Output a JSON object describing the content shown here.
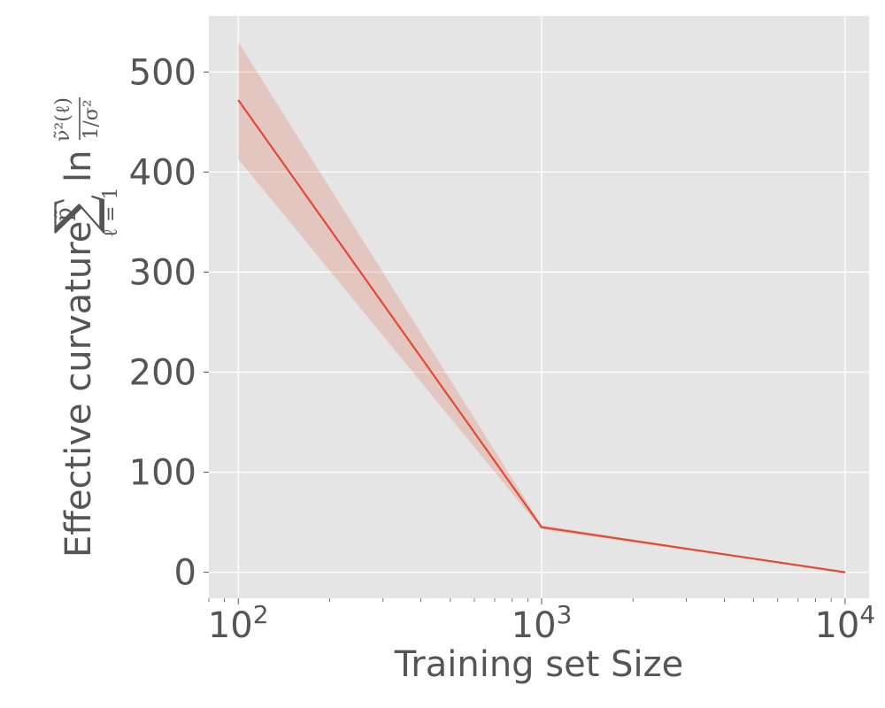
{
  "chart_data": {
    "type": "line",
    "xscale": "log",
    "xlim": [
      80,
      12000
    ],
    "ylim": [
      -26,
      556
    ],
    "grid": true,
    "xlabel": "Training set Size",
    "ylabel_text": "Effective curvature",
    "ylabel_math": {
      "sum_top": "p̃",
      "sum_symbol": "∑",
      "sum_bottom": "ℓ = 1",
      "ln": "ln",
      "numerator": "ν̃²(ℓ)",
      "denominator": "1/σ²"
    },
    "x_ticks": [
      {
        "value": 100,
        "base": "10",
        "exp": "2"
      },
      {
        "value": 1000,
        "base": "10",
        "exp": "3"
      },
      {
        "value": 10000,
        "base": "10",
        "exp": "4"
      }
    ],
    "y_ticks": [
      0,
      100,
      200,
      300,
      400,
      500
    ],
    "series": [
      {
        "color": "#E24A33",
        "x": [
          100,
          1000,
          10000
        ],
        "y": [
          472,
          45,
          0
        ],
        "lower": [
          413,
          43,
          0
        ],
        "upper": [
          530,
          47,
          0
        ]
      }
    ]
  }
}
